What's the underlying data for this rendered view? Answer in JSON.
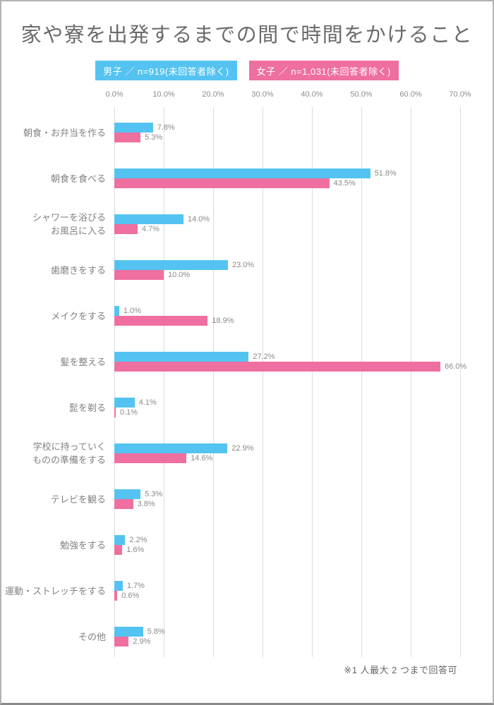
{
  "title": "家や寮を出発するまでの間で時間をかけること",
  "legend": {
    "male": {
      "label": "男子 ／ n=919(未回答者除く)",
      "color": "#54C3F1"
    },
    "female": {
      "label": "女子 ／ n=1,031(未回答者除く)",
      "color": "#EE6FA0"
    }
  },
  "footnote": "※1 人最大 2 つまで回答可",
  "chart_data": {
    "type": "bar",
    "orientation": "horizontal",
    "title": "家や寮を出発するまでの間で時間をかけること",
    "categories": [
      "朝食・お弁当を作る",
      "朝食を食べる",
      "シャワーを浴びる\nお風呂に入る",
      "歯磨きをする",
      "メイクをする",
      "髪を整える",
      "髭を剃る",
      "学校に持っていく\nものの準備をする",
      "テレビを観る",
      "勉強をする",
      "運動・ストレッチをする",
      "その他"
    ],
    "series": [
      {
        "name": "男子",
        "color": "#54C3F1",
        "values": [
          7.8,
          51.8,
          14.0,
          23.0,
          1.0,
          27.2,
          4.1,
          22.9,
          5.3,
          2.2,
          1.7,
          5.8
        ]
      },
      {
        "name": "女子",
        "color": "#EE6FA0",
        "values": [
          5.3,
          43.5,
          4.7,
          10.0,
          18.9,
          66.0,
          0.1,
          14.6,
          3.8,
          1.6,
          0.6,
          2.9
        ]
      }
    ],
    "value_suffix": "%",
    "xlim": [
      0,
      70
    ],
    "x_ticks": [
      "0.0%",
      "10.0%",
      "20.0%",
      "30.0%",
      "40.0%",
      "50.0%",
      "60.0%",
      "70.0%"
    ],
    "grid": true,
    "legend_position": "top",
    "value_labels": true
  }
}
